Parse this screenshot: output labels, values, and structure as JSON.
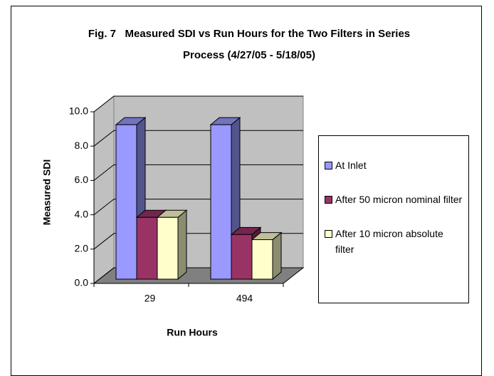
{
  "chart_data": {
    "type": "bar3d",
    "title": "Fig. 7   Measured SDI vs Run Hours for the Two Filters in Series Process (4/27/05 - 5/18/05)",
    "xlabel": "Run Hours",
    "ylabel": "Measured SDI",
    "categories": [
      "29",
      "494"
    ],
    "series": [
      {
        "name": "At Inlet",
        "color": "#9999ff",
        "values": [
          9.0,
          9.0
        ]
      },
      {
        "name": "After 50 micron nominal filter",
        "color": "#993366",
        "values": [
          3.6,
          2.6
        ]
      },
      {
        "name": "After 10 micron absolute filter",
        "color": "#ffffcc",
        "values": [
          3.6,
          2.3
        ]
      }
    ],
    "ylim": [
      0,
      10
    ],
    "yticks": [
      {
        "value": 0,
        "label": "0.0"
      },
      {
        "value": 2,
        "label": "2.0"
      },
      {
        "value": 4,
        "label": "4.0"
      },
      {
        "value": 6,
        "label": "6.0"
      },
      {
        "value": 8,
        "label": "8.0"
      },
      {
        "value": 10,
        "label": "10.0"
      }
    ],
    "grid": true
  }
}
